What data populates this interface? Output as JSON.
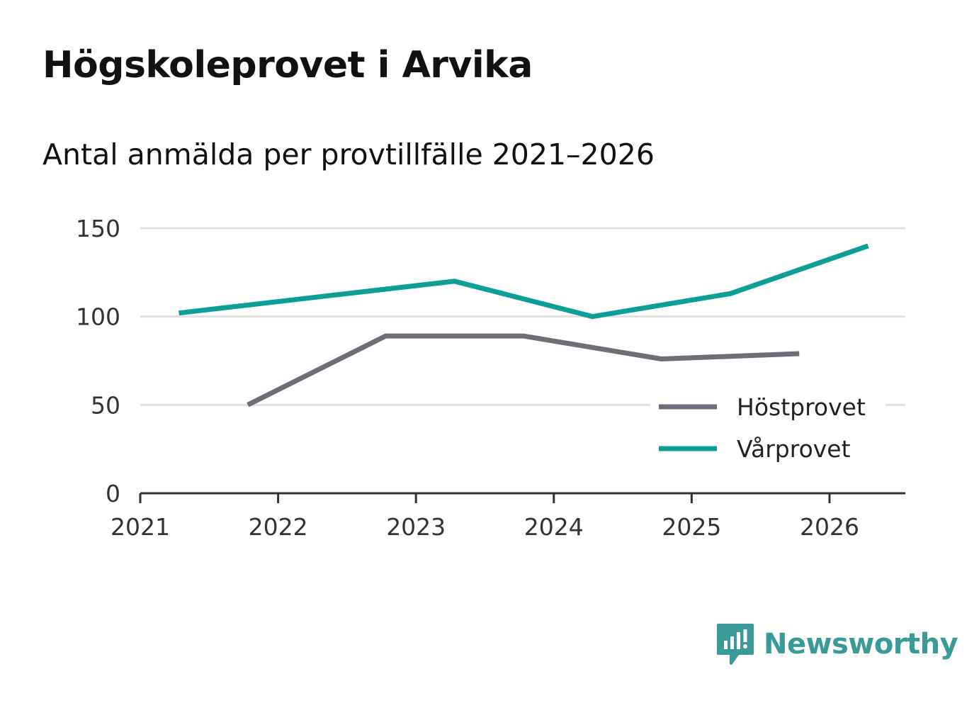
{
  "title": "Högskoleprovet i Arvika",
  "subtitle": "Antal anmälda per provtillfälle 2021–2026",
  "brand": {
    "name": "Newsworthy",
    "color": "#3a9a97",
    "icon": "bar-chart-speech-bubble-icon"
  },
  "chart_data": {
    "type": "line",
    "title": "Högskoleprovet i Arvika",
    "subtitle": "Antal anmälda per provtillfälle 2021–2026",
    "xlabel": "",
    "ylabel": "",
    "xlim": [
      2021,
      2026.55
    ],
    "ylim": [
      0,
      150
    ],
    "x_ticks": [
      2021,
      2022,
      2023,
      2024,
      2025,
      2026
    ],
    "y_ticks": [
      0,
      50,
      100,
      150
    ],
    "grid": true,
    "legend_position": "bottom-right",
    "series": [
      {
        "name": "Höstprovet",
        "color": "#6e6e76",
        "points": [
          {
            "x": 2021.78,
            "y": 50
          },
          {
            "x": 2022.78,
            "y": 89
          },
          {
            "x": 2023.78,
            "y": 89
          },
          {
            "x": 2024.78,
            "y": 76
          },
          {
            "x": 2025.78,
            "y": 79
          }
        ]
      },
      {
        "name": "Vårprovet",
        "color": "#0e9e98",
        "points": [
          {
            "x": 2021.28,
            "y": 102
          },
          {
            "x": 2022.28,
            "y": 111
          },
          {
            "x": 2023.28,
            "y": 120
          },
          {
            "x": 2024.28,
            "y": 100
          },
          {
            "x": 2025.28,
            "y": 113
          },
          {
            "x": 2026.28,
            "y": 140
          }
        ]
      }
    ]
  }
}
